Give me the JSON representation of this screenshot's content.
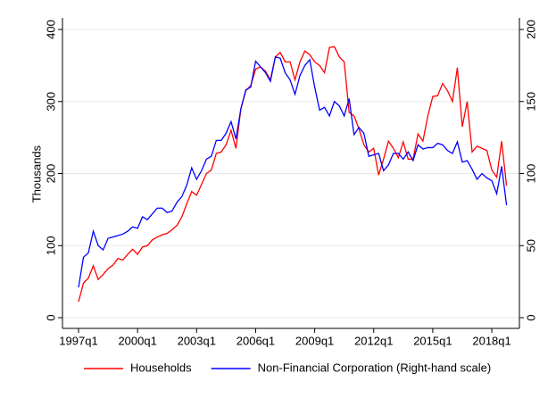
{
  "chart_data": {
    "type": "line",
    "y_label": "Thousands",
    "categories": [
      "1997q1",
      null,
      null,
      null,
      null,
      null,
      null,
      null,
      null,
      null,
      null,
      null,
      "2000q1",
      null,
      null,
      null,
      null,
      null,
      null,
      null,
      null,
      null,
      null,
      null,
      "2003q1",
      null,
      null,
      null,
      null,
      null,
      null,
      null,
      null,
      null,
      null,
      null,
      "2006q1",
      null,
      null,
      null,
      null,
      null,
      null,
      null,
      null,
      null,
      null,
      null,
      "2009q1",
      null,
      null,
      null,
      null,
      null,
      null,
      null,
      null,
      null,
      null,
      null,
      "2012q1",
      null,
      null,
      null,
      null,
      null,
      null,
      null,
      null,
      null,
      null,
      null,
      "2015q1",
      null,
      null,
      null,
      null,
      null,
      null,
      null,
      null,
      null,
      null,
      null,
      "2018q1",
      null,
      null,
      null
    ],
    "series": [
      {
        "name": "Households",
        "color": "#ff0000",
        "values": [
          22,
          48,
          55,
          72,
          53,
          60,
          68,
          73,
          82,
          80,
          88,
          95,
          88,
          98,
          100,
          108,
          112,
          115,
          117,
          122,
          128,
          140,
          158,
          175,
          170,
          185,
          200,
          205,
          228,
          230,
          240,
          260,
          235,
          290,
          315,
          322,
          345,
          348,
          342,
          330,
          362,
          368,
          355,
          355,
          330,
          355,
          370,
          365,
          355,
          350,
          340,
          375,
          376,
          362,
          355,
          285,
          280,
          262,
          240,
          230,
          235,
          198,
          220,
          245,
          235,
          222,
          244,
          220,
          220,
          255,
          245,
          280,
          307,
          308,
          325,
          315,
          300,
          347,
          265,
          300,
          230,
          238,
          235,
          232,
          205,
          195,
          245,
          183
        ]
      },
      {
        "name": "Non-Financial Corporation (Right-hand scale)",
        "color": "#0000ff",
        "axis": "y2",
        "values": [
          21,
          42,
          45,
          60,
          50,
          47,
          55,
          56,
          57,
          58,
          60,
          63,
          62,
          70,
          68,
          72,
          76,
          76,
          73,
          74,
          80,
          84,
          92,
          104,
          96,
          102,
          110,
          112,
          123,
          123,
          128,
          136,
          124,
          145,
          158,
          160,
          178,
          174,
          170,
          164,
          181,
          180,
          170,
          165,
          155,
          168,
          175,
          179,
          160,
          144,
          146,
          140,
          150,
          147,
          140,
          152,
          127,
          132,
          128,
          112,
          113,
          114,
          102,
          106,
          114,
          114,
          110,
          115,
          109,
          120,
          117,
          118,
          118,
          121,
          120,
          116,
          114,
          122,
          108,
          109,
          103,
          96,
          100,
          97,
          95,
          86,
          105,
          78
        ]
      }
    ],
    "ylim": [
      0,
      400
    ],
    "yticks": [
      0,
      100,
      200,
      300,
      400
    ],
    "y2lim": [
      0,
      200
    ],
    "y2ticks": [
      0,
      50,
      100,
      150,
      200
    ],
    "grid": true,
    "legend": "bottom"
  }
}
